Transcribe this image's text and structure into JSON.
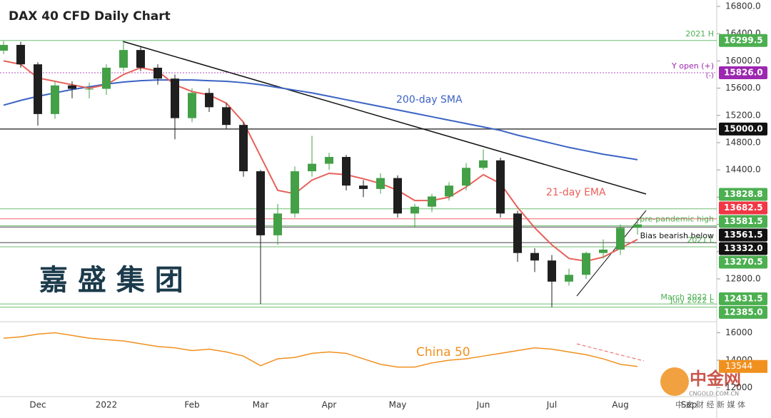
{
  "chart_data": [
    {
      "type": "candlestick",
      "title": "DAX 40 CFD Daily Chart",
      "categories": [
        null,
        null,
        "Dec",
        null,
        null,
        null,
        "2022",
        null,
        null,
        null,
        null,
        "Feb",
        null,
        null,
        null,
        "Mar",
        null,
        null,
        null,
        "Apr",
        null,
        null,
        null,
        "May",
        null,
        null,
        null,
        null,
        "Jun",
        null,
        null,
        null,
        "Jul",
        null,
        null,
        null,
        "Aug",
        null,
        null,
        null,
        "Sep"
      ],
      "open": [
        16150,
        16235,
        15950,
        15220,
        15640,
        15590,
        15590,
        15900,
        16160,
        15900,
        15740,
        15160,
        15530,
        15320,
        15060,
        14380,
        13440,
        13760,
        14380,
        14490,
        14590,
        14170,
        14120,
        14280,
        13760,
        13860,
        14010,
        14170,
        14430,
        14540,
        13760,
        13180,
        13070,
        12760,
        12860,
        13180,
        13230,
        13550,
        null,
        null,
        null
      ],
      "high": [
        16290,
        16280,
        15980,
        15700,
        15700,
        15680,
        15950,
        16290,
        16200,
        15950,
        15800,
        15600,
        15600,
        15380,
        15100,
        14400,
        13900,
        14450,
        14900,
        14650,
        14620,
        14250,
        14350,
        14320,
        13900,
        14050,
        14220,
        14500,
        14700,
        14580,
        13800,
        13250,
        13150,
        12950,
        13200,
        13380,
        13600,
        13700,
        null,
        null,
        null
      ],
      "low": [
        16100,
        15900,
        15050,
        15150,
        15450,
        15450,
        15500,
        15850,
        15850,
        15650,
        14850,
        15100,
        15250,
        15000,
        14300,
        12431,
        13300,
        13700,
        14300,
        14400,
        14100,
        14000,
        14050,
        13700,
        13550,
        13780,
        13950,
        14100,
        14400,
        13700,
        13050,
        12900,
        12385,
        12700,
        12800,
        13100,
        13150,
        13450,
        null,
        null,
        null
      ],
      "close": [
        16235,
        15950,
        15220,
        15640,
        15590,
        15590,
        15900,
        16160,
        15900,
        15740,
        15160,
        15530,
        15320,
        15060,
        14380,
        13440,
        13760,
        14380,
        14490,
        14590,
        14170,
        14120,
        14280,
        13760,
        13860,
        14010,
        14170,
        14430,
        14540,
        13760,
        13180,
        13070,
        12760,
        12860,
        13180,
        13230,
        13550,
        13600,
        null,
        null,
        null
      ],
      "colors": {
        "up": "#43a047",
        "down": "#1f1f1f"
      },
      "series": [
        {
          "name": "200-day SMA",
          "color": "#3b63c4",
          "values": [
            15350,
            15420,
            15480,
            15530,
            15580,
            15620,
            15660,
            15690,
            15710,
            15720,
            15720,
            15720,
            15710,
            15700,
            15680,
            15650,
            15610,
            15570,
            15530,
            15480,
            15430,
            15380,
            15330,
            15280,
            15230,
            15180,
            15130,
            15080,
            15030,
            14980,
            14910,
            14850,
            14790,
            14730,
            14680,
            14630,
            14590,
            14550,
            null,
            null,
            null
          ]
        },
        {
          "name": "21-day EMA",
          "color": "#e8605a",
          "values": [
            16000,
            15950,
            15750,
            15700,
            15650,
            15600,
            15650,
            15800,
            15900,
            15850,
            15650,
            15550,
            15500,
            15380,
            15100,
            14600,
            14100,
            14050,
            14250,
            14350,
            14330,
            14270,
            14200,
            14100,
            13950,
            13950,
            14000,
            14150,
            14330,
            14200,
            13850,
            13550,
            13300,
            13100,
            13060,
            13120,
            13250,
            13380,
            null,
            null,
            null
          ]
        }
      ],
      "ylim": [
        12182,
        16894
      ],
      "yticks": [
        {
          "value": 12800,
          "label": "12800.0"
        },
        {
          "value": 13200,
          "label": "13200.0"
        },
        {
          "value": 13600,
          "label": "13600.0"
        },
        {
          "value": 14000,
          "label": "14000.0"
        },
        {
          "value": 14400,
          "label": "14400.0"
        },
        {
          "value": 14800,
          "label": "14800.0"
        },
        {
          "value": 15200,
          "label": "15200.0"
        },
        {
          "value": 15600,
          "label": "15600.0"
        },
        {
          "value": 16000,
          "label": "16000.0"
        },
        {
          "value": 16400,
          "label": "16400.0"
        },
        {
          "value": 16800,
          "label": "16800.0"
        }
      ],
      "levels": [
        {
          "value": 16299.5,
          "label": "16299.5",
          "color": "#4caf50",
          "note": "2021 H"
        },
        {
          "value": 15826,
          "label": "15826.0",
          "color": "#9c27b0",
          "note": "Y open (+)"
        },
        {
          "value": 15000,
          "label": "15000.0",
          "color": "#111111"
        },
        {
          "value": 13828.8,
          "label": "13828.8",
          "color": "#4caf50"
        },
        {
          "value": 13682.5,
          "label": "13682.5",
          "color": "#f23645"
        },
        {
          "value": 13581.5,
          "label": "13581.5",
          "color": "#4caf50",
          "note": "pre-pandemic high"
        },
        {
          "value": 13561.5,
          "label": "13561.5",
          "color": "#111111"
        },
        {
          "value": 13332,
          "label": "13332.0",
          "color": "#111111",
          "note": "Bias bearish below"
        },
        {
          "value": 13270.5,
          "label": "13270.5",
          "color": "#4caf50",
          "note": "2021 L"
        },
        {
          "value": 12431.5,
          "label": "12431.5",
          "color": "#4caf50",
          "note": "March 2022 L"
        },
        {
          "value": 12385,
          "label": "12385.0",
          "color": "#4caf50",
          "note": "July 2022 L"
        }
      ],
      "annotations": [
        "(-)"
      ]
    },
    {
      "type": "line",
      "series": [
        {
          "name": "China 50",
          "color": "#f0901e",
          "values": [
            15600,
            15700,
            15900,
            16000,
            15800,
            15600,
            15500,
            15400,
            15200,
            15000,
            14900,
            14700,
            14800,
            14600,
            14300,
            13600,
            14100,
            14200,
            14500,
            14600,
            14500,
            14100,
            13700,
            13500,
            13500,
            13800,
            14000,
            14100,
            14300,
            14500,
            14700,
            14900,
            14800,
            14600,
            14400,
            14100,
            13700,
            13544,
            null,
            null,
            null
          ]
        }
      ],
      "last_label": "13544",
      "ylim": [
        11350,
        16750
      ],
      "yticks": [
        12000,
        14000,
        16000
      ]
    }
  ],
  "watermark": {
    "brand": "嘉 盛 集 团",
    "logo": "中金网",
    "site": "CNGOLD.COM.CN",
    "tagline": "中 文 财 经 新 媒 体"
  }
}
